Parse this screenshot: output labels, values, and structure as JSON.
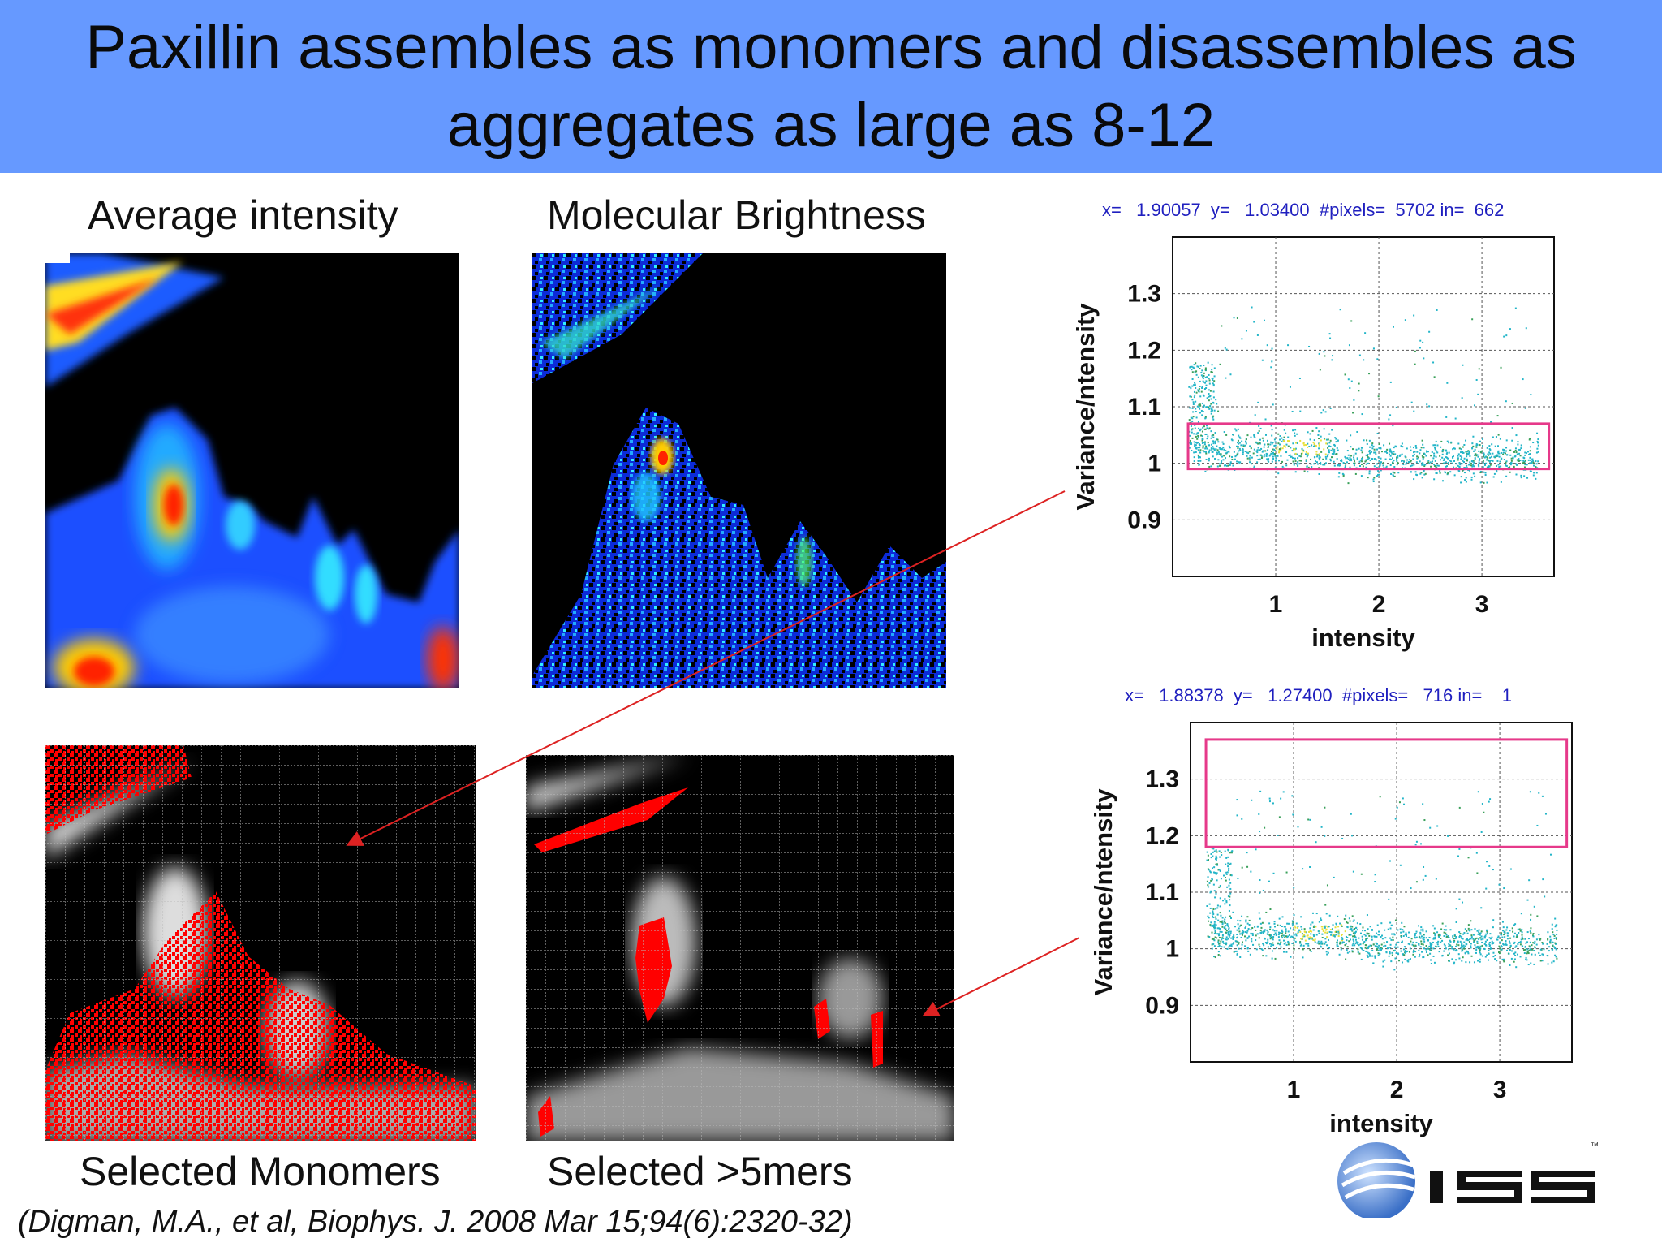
{
  "slide": {
    "title_line1": "Paxillin assembles as monomers and disassembles as",
    "title_line2": "aggregates as large as 8-12",
    "labels": {
      "avg_intensity": "Average intensity",
      "molecular_brightness": "Molecular Brightness",
      "selected_monomers": "Selected Monomers",
      "selected_5mers": "Selected >5mers"
    },
    "citation": "(Digman, M.A., et al, Biophys.  J. 2008 Mar 15;94(6):2320-32)",
    "logo_text": "ISS",
    "trademark": "™"
  },
  "plots": {
    "top_readout": "x=   1.90057  y=   1.03400  #pixels=  5702 in=  662",
    "bottom_readout": "x=   1.88378  y=   1.27400  #pixels=   716 in=    1"
  },
  "chart_data": [
    {
      "type": "scatter",
      "title": "",
      "xlabel": "intensity",
      "ylabel": "Variance/ntensity",
      "x_ticks": [
        "1",
        "2",
        "3"
      ],
      "y_ticks": [
        "0.9",
        "1",
        "1.1",
        "1.2",
        "1.3"
      ],
      "xlim": [
        0,
        3.7
      ],
      "ylim": [
        0.8,
        1.4
      ],
      "grid": true,
      "selection_box": {
        "x": [
          0.15,
          3.65
        ],
        "y": [
          0.99,
          1.07
        ],
        "color": "#e6398a"
      },
      "point_color": "#22b5c8"
    },
    {
      "type": "scatter",
      "title": "",
      "xlabel": "intensity",
      "ylabel": "Variance/ntensity",
      "x_ticks": [
        "1",
        "2",
        "3"
      ],
      "y_ticks": [
        "0.9",
        "1",
        "1.1",
        "1.2",
        "1.3"
      ],
      "xlim": [
        0,
        3.7
      ],
      "ylim": [
        0.8,
        1.4
      ],
      "grid": true,
      "selection_box": {
        "x": [
          0.15,
          3.65
        ],
        "y": [
          1.18,
          1.37
        ],
        "color": "#e6398a"
      },
      "point_color": "#22b5c8"
    }
  ],
  "colors": {
    "title_bg": "#6699ff",
    "arrow": "#dd2222",
    "selection": "#e6398a",
    "readout": "#1f1fbf"
  }
}
